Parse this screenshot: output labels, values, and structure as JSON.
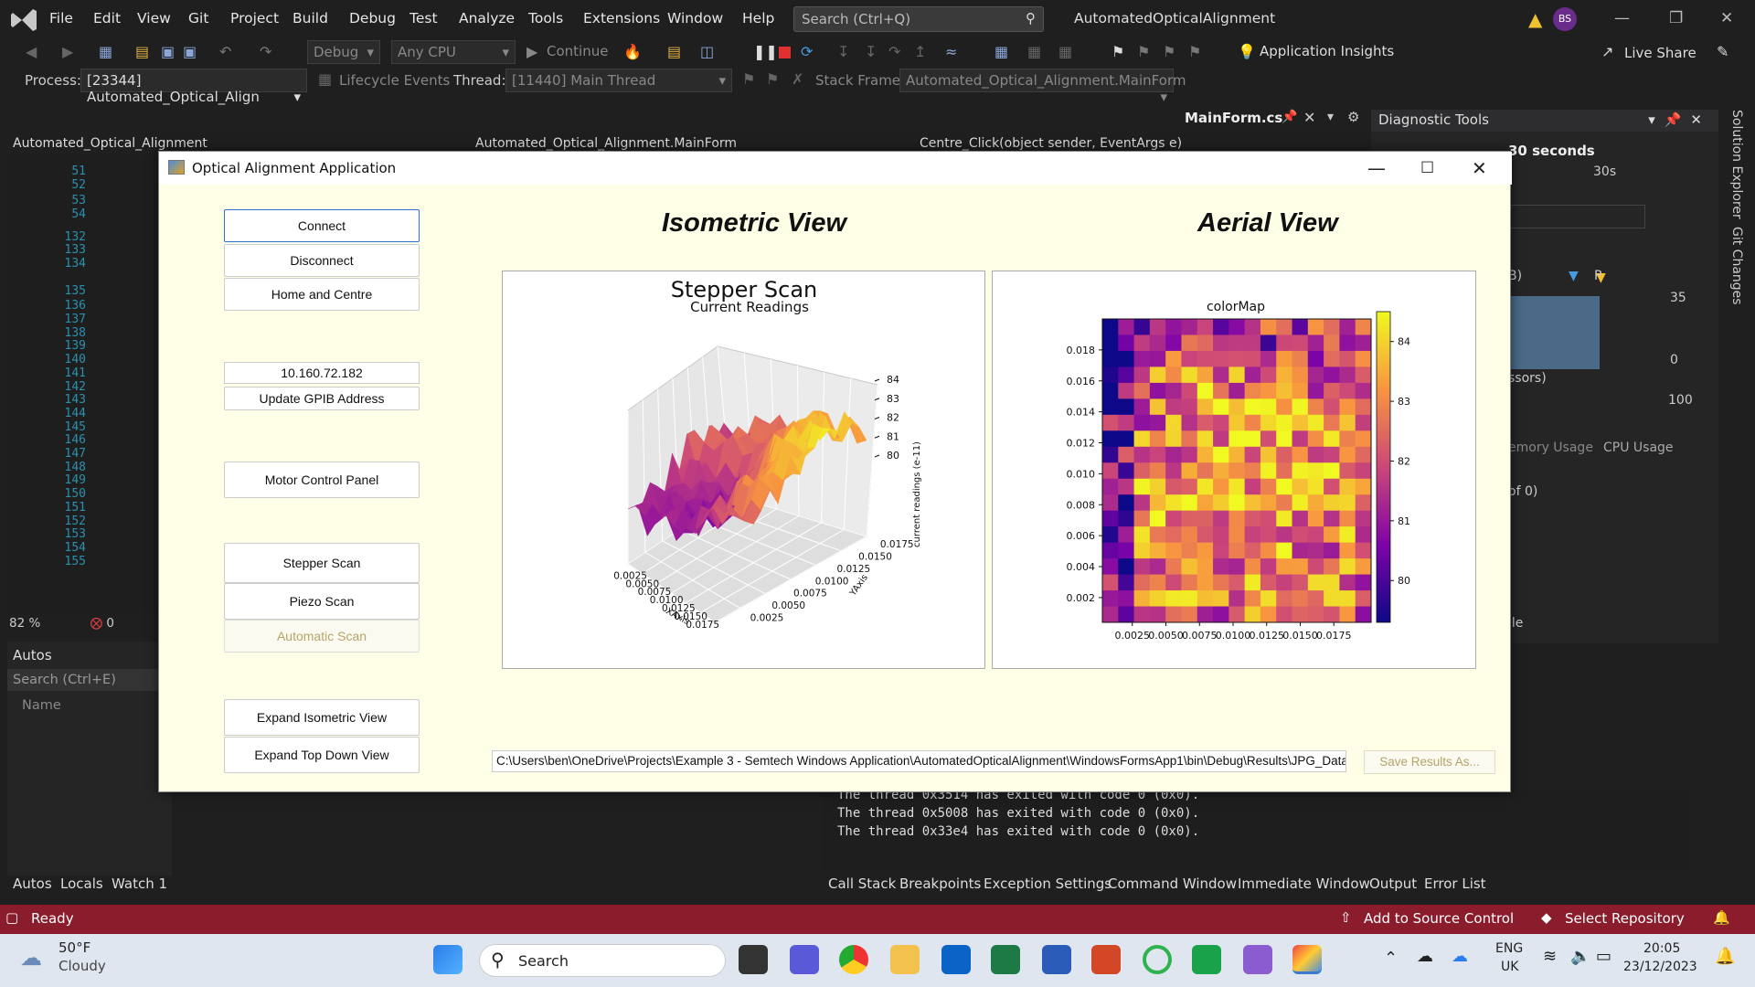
{
  "vs": {
    "menu": [
      "File",
      "Edit",
      "View",
      "Git",
      "Project",
      "Build",
      "Debug",
      "Test",
      "Analyze",
      "Tools",
      "Extensions",
      "Window",
      "Help"
    ],
    "search_placeholder": "Search (Ctrl+Q)",
    "solution_title": "AutomatedOpticalAlignment",
    "avatar": "BS",
    "config": "Debug",
    "platform": "Any CPU",
    "continue_label": "Continue",
    "app_insights": "Application Insights",
    "live_share": "Live Share",
    "process_label": "Process:",
    "process_value": "[23344] Automated_Optical_Align",
    "lifecycle": "Lifecycle Events",
    "thread_label": "Thread:",
    "thread_value": "[11440] Main Thread",
    "stack_label": "Stack Frame:",
    "stack_value": "Automated_Optical_Alignment.MainForm",
    "doc_tab": "MainForm.cs",
    "nav_project": "Automated_Optical_Alignment",
    "nav_class": "Automated_Optical_Alignment.MainForm",
    "nav_member": "Centre_Click(object sender, EventArgs e)",
    "line_numbers": [
      "51",
      "52",
      "53",
      "54",
      "132",
      "133",
      "134",
      "135",
      "136",
      "137",
      "138",
      "139",
      "140",
      "141",
      "142",
      "143",
      "144",
      "145",
      "146",
      "147",
      "148",
      "149",
      "150",
      "151",
      "152",
      "153",
      "154",
      "155"
    ],
    "zoom": "82 %",
    "errors": "0",
    "diag_title": "Diagnostic Tools",
    "diag_seconds": "30 seconds",
    "diag_30s": "30s",
    "diag_35": "35",
    "diag_0": "0",
    "diag_100": "100",
    "diag_mb": "B)",
    "diag_p": "P",
    "diag_processors": "ssors)",
    "diag_memory": "emory Usage",
    "diag_cpu": "CPU Usage",
    "diag_of0": "of 0)",
    "diag_file": "ile",
    "side_solution": "Solution Explorer",
    "side_git": "Git Changes",
    "autos_title": "Autos",
    "autos_search": "Search (Ctrl+E)",
    "autos_name": "Name",
    "output_lines": [
      "The thread 0x3514 has exited with code 0 (0x0).",
      "The thread 0x5008 has exited with code 0 (0x0).",
      "The thread 0x33e4 has exited with code 0 (0x0)."
    ],
    "left_tabs": [
      "Autos",
      "Locals",
      "Watch 1"
    ],
    "right_tabs": [
      "Call Stack",
      "Breakpoints",
      "Exception Settings",
      "Command Window",
      "Immediate Window",
      "Output",
      "Error List"
    ],
    "status_ready": "Ready",
    "add_source": "Add to Source Control",
    "select_repo": "Select Repository"
  },
  "app": {
    "title": "Optical Alignment Application",
    "buttons": {
      "connect": "Connect",
      "disconnect": "Disconnect",
      "home": "Home and Centre",
      "update_gpib": "Update GPIB Address",
      "motor": "Motor Control Panel",
      "stepper": "Stepper Scan",
      "piezo": "Piezo Scan",
      "automatic": "Automatic Scan",
      "expand_iso": "Expand Isometric View",
      "expand_top": "Expand Top Down View",
      "save": "Save Results As..."
    },
    "ip": "10.160.72.182",
    "iso_title": "Isometric View",
    "aerial_title": "Aerial View",
    "path": "C:\\Users\\ben\\OneDrive\\Projects\\Example 3 - Semtech Windows Application\\AutomatedOpticalAlignment\\WindowsFormsApp1\\bin\\Debug\\Results\\JPG_Data"
  },
  "chart_data": [
    {
      "type": "surface3d",
      "title": "Stepper Scan",
      "subtitle": "Current Readings",
      "xlabel": "XAxis",
      "ylabel": "YAxis",
      "zlabel": "current readings (e-11)",
      "x_ticks": [
        "0.0025",
        "0.0050",
        "0.0075",
        "0.0100",
        "0.0125",
        "0.0150",
        "0.0175"
      ],
      "y_ticks": [
        "0.0025",
        "0.0050",
        "0.0075",
        "0.0100",
        "0.0125",
        "0.0150",
        "0.0175"
      ],
      "z_ticks": [
        "80",
        "81",
        "82",
        "83",
        "84"
      ],
      "zlim": [
        79.5,
        84.5
      ]
    },
    {
      "type": "heatmap",
      "title": "colorMap",
      "x_ticks": [
        "0.0025",
        "0.0050",
        "0.0075",
        "0.0100",
        "0.0125",
        "0.0150",
        "0.0175"
      ],
      "y_ticks": [
        "0.002",
        "0.004",
        "0.006",
        "0.008",
        "0.010",
        "0.012",
        "0.014",
        "0.016",
        "0.018"
      ],
      "colorbar_ticks": [
        "80",
        "81",
        "82",
        "83",
        "84"
      ],
      "colorbar_range": [
        79.3,
        84.5
      ],
      "colormap": "plasma"
    }
  ],
  "taskbar": {
    "temp": "50°F",
    "weather": "Cloudy",
    "search": "Search",
    "lang1": "ENG",
    "lang2": "UK",
    "time": "20:05",
    "date": "23/12/2023"
  }
}
